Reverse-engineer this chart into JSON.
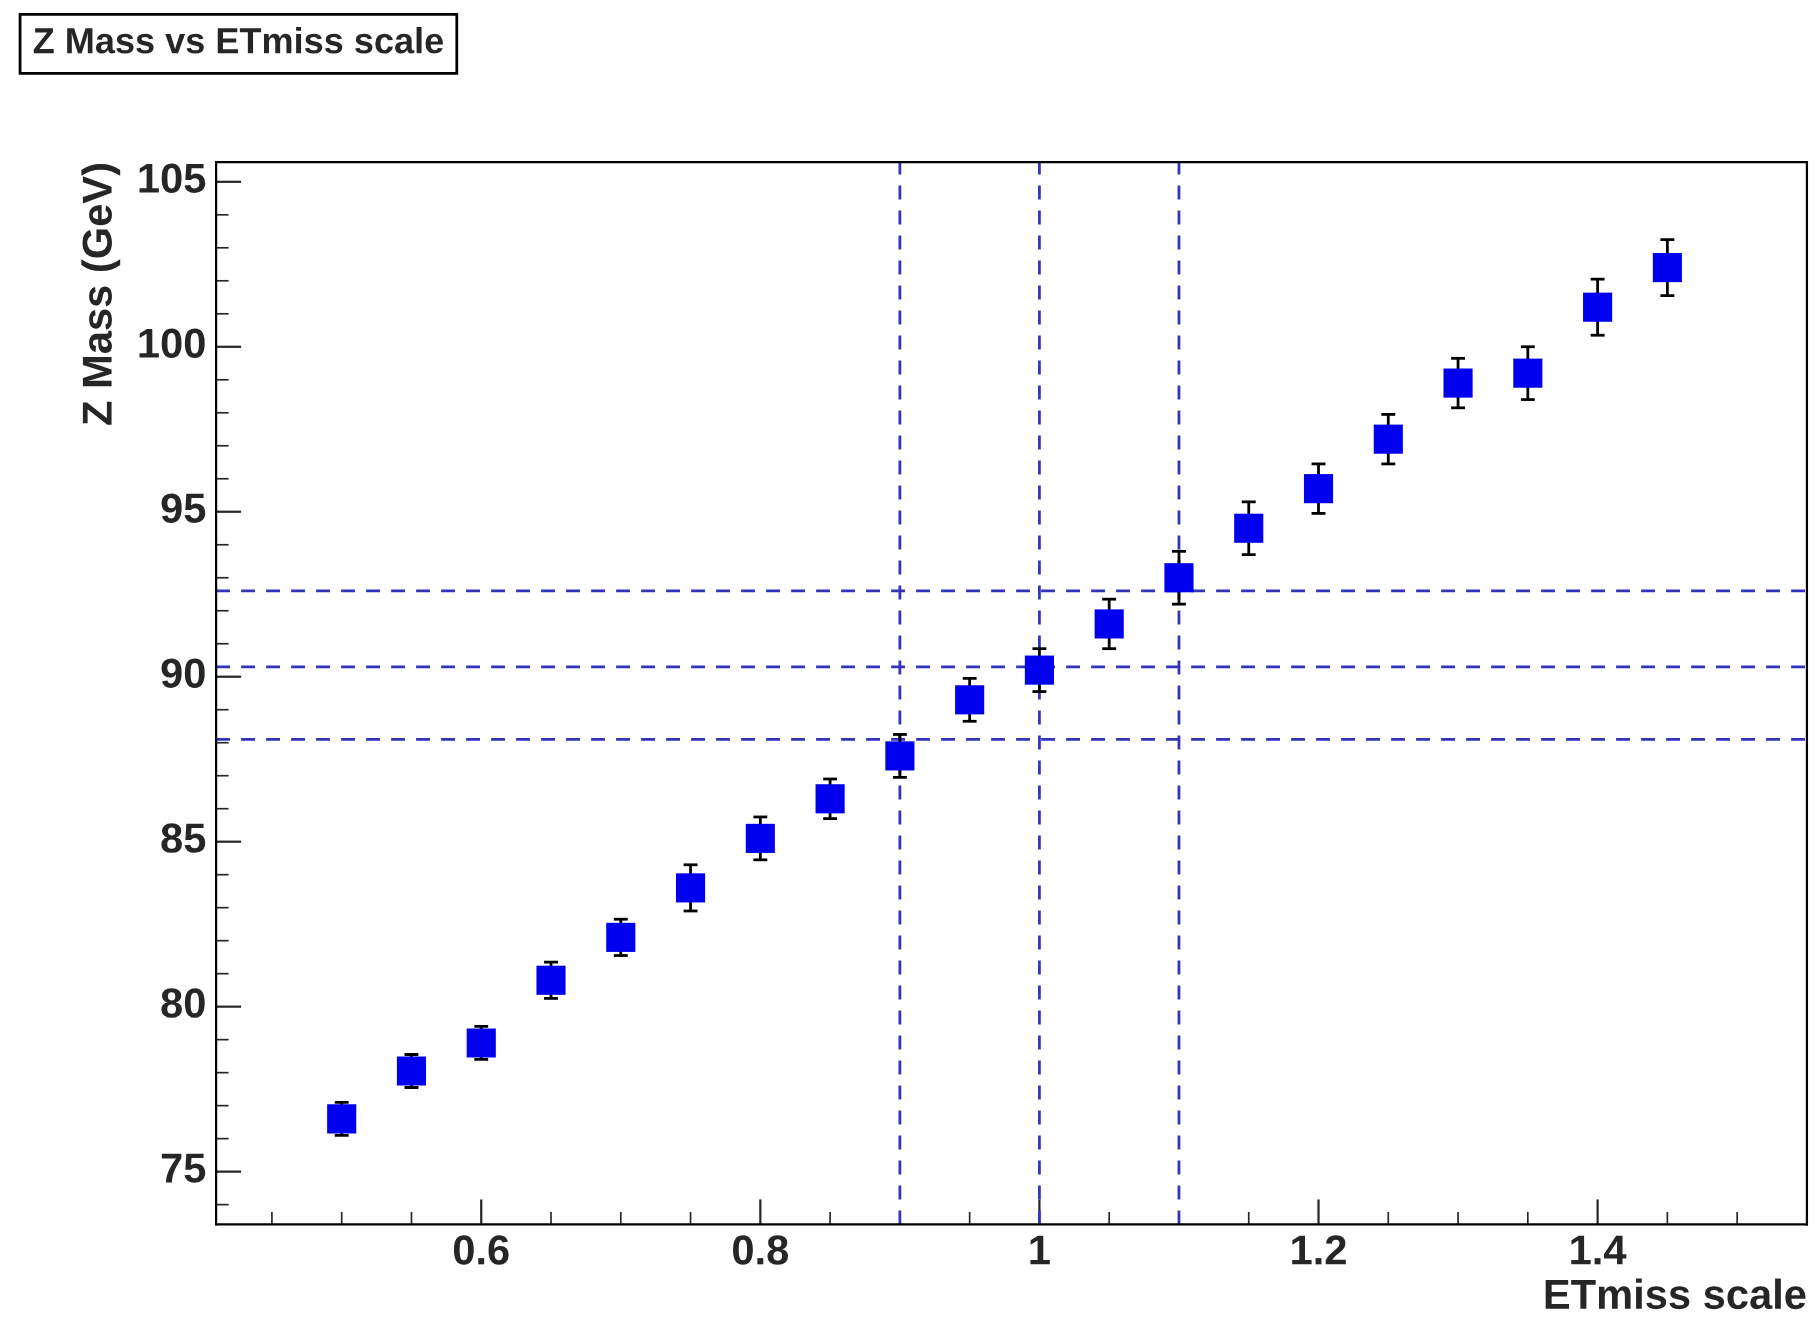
{
  "chart_data": {
    "type": "scatter",
    "title": "Z Mass vs ETmiss scale",
    "xlabel": "ETmiss scale",
    "ylabel": "Z Mass (GeV)",
    "x": [
      0.5,
      0.55,
      0.6,
      0.65,
      0.7,
      0.75,
      0.8,
      0.85,
      0.9,
      0.95,
      1.0,
      1.05,
      1.1,
      1.15,
      1.2,
      1.25,
      1.3,
      1.35,
      1.4,
      1.45
    ],
    "series": [
      {
        "color": "#0000ee",
        "values": [
          76.6,
          78.05,
          78.9,
          80.8,
          82.1,
          83.6,
          85.1,
          86.3,
          87.6,
          89.3,
          90.2,
          91.6,
          93.0,
          94.5,
          95.7,
          97.2,
          98.9,
          99.2,
          101.2,
          102.4
        ],
        "errors": [
          0.5,
          0.5,
          0.5,
          0.55,
          0.55,
          0.7,
          0.65,
          0.6,
          0.65,
          0.65,
          0.65,
          0.75,
          0.8,
          0.8,
          0.75,
          0.75,
          0.75,
          0.8,
          0.85,
          0.85
        ]
      }
    ],
    "marker": "square",
    "grid": false,
    "legend": false,
    "xlim": [
      0.41,
      1.55
    ],
    "xticks": [
      {
        "value": 0.6,
        "label": "0.6"
      },
      {
        "value": 0.8,
        "label": "0.8"
      },
      {
        "value": 1.0,
        "label": "1"
      },
      {
        "value": 1.2,
        "label": "1.2"
      },
      {
        "value": 1.4,
        "label": "1.4"
      }
    ],
    "ylim": [
      73.4,
      105.6
    ],
    "yticks": [
      75,
      80,
      85,
      90,
      95,
      100,
      105
    ],
    "ref_lines": [
      {
        "axis": "x",
        "value": 0.9,
        "color": "#3333bb",
        "line_style": "dashed"
      },
      {
        "axis": "x",
        "value": 1.0,
        "color": "#3333bb",
        "line_style": "dashed"
      },
      {
        "axis": "x",
        "value": 1.1,
        "color": "#3333bb",
        "line_style": "dashed"
      },
      {
        "axis": "y",
        "value": 92.6,
        "color": "#3333bb",
        "line_style": "dashed"
      },
      {
        "axis": "y",
        "value": 90.3,
        "color": "#3333bb",
        "line_style": "dashed"
      },
      {
        "axis": "y",
        "value": 88.1,
        "color": "#3333bb",
        "line_style": "dashed"
      }
    ]
  }
}
